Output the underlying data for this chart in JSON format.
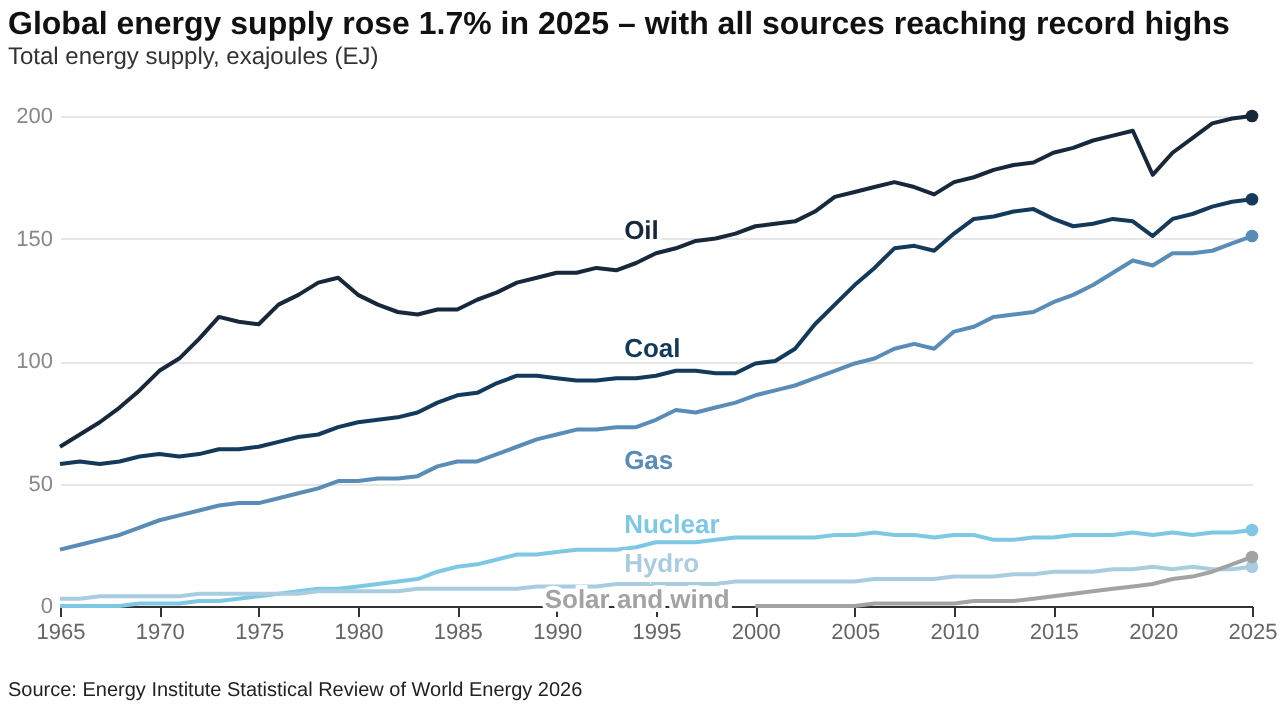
{
  "chart_data": {
    "type": "line",
    "title": "Global energy supply rose 1.7% in 2025 – with all sources reaching record highs",
    "subtitle": "Total energy supply, exajoules (EJ)",
    "x": [
      1965,
      1966,
      1967,
      1968,
      1969,
      1970,
      1971,
      1972,
      1973,
      1974,
      1975,
      1976,
      1977,
      1978,
      1979,
      1980,
      1981,
      1982,
      1983,
      1984,
      1985,
      1986,
      1987,
      1988,
      1989,
      1990,
      1991,
      1992,
      1993,
      1994,
      1995,
      1996,
      1997,
      1998,
      1999,
      2000,
      2001,
      2002,
      2003,
      2004,
      2005,
      2006,
      2007,
      2008,
      2009,
      2010,
      2011,
      2012,
      2013,
      2014,
      2015,
      2016,
      2017,
      2018,
      2019,
      2020,
      2021,
      2022,
      2023,
      2024,
      2025
    ],
    "series": [
      {
        "name": "Oil",
        "color": "#16283a",
        "values": [
          65,
          70,
          75,
          81,
          88,
          96,
          101,
          109,
          118,
          116,
          115,
          123,
          127,
          132,
          134,
          127,
          123,
          120,
          119,
          121,
          121,
          125,
          128,
          132,
          134,
          136,
          136,
          138,
          137,
          140,
          144,
          146,
          149,
          150,
          152,
          155,
          156,
          157,
          161,
          167,
          169,
          171,
          173,
          171,
          168,
          173,
          175,
          178,
          180,
          181,
          185,
          187,
          190,
          192,
          194,
          176,
          185,
          191,
          197,
          199,
          200
        ]
      },
      {
        "name": "Coal",
        "color": "#133a5a",
        "values": [
          58,
          59,
          58,
          59,
          61,
          62,
          61,
          62,
          64,
          64,
          65,
          67,
          69,
          70,
          73,
          75,
          76,
          77,
          79,
          83,
          86,
          87,
          91,
          94,
          94,
          93,
          92,
          92,
          93,
          93,
          94,
          96,
          96,
          95,
          95,
          99,
          100,
          105,
          115,
          123,
          131,
          138,
          146,
          147,
          145,
          152,
          158,
          159,
          161,
          162,
          158,
          155,
          156,
          158,
          157,
          151,
          158,
          160,
          163,
          165,
          166
        ]
      },
      {
        "name": "Gas",
        "color": "#5a8cb8",
        "values": [
          23,
          25,
          27,
          29,
          32,
          35,
          37,
          39,
          41,
          42,
          42,
          44,
          46,
          48,
          51,
          51,
          52,
          52,
          53,
          57,
          59,
          59,
          62,
          65,
          68,
          70,
          72,
          72,
          73,
          73,
          76,
          80,
          79,
          81,
          83,
          86,
          88,
          90,
          93,
          96,
          99,
          101,
          105,
          107,
          105,
          112,
          114,
          118,
          119,
          120,
          124,
          127,
          131,
          136,
          141,
          139,
          144,
          144,
          145,
          148,
          151
        ]
      },
      {
        "name": "Nuclear",
        "color": "#7ec8e3",
        "values": [
          0,
          0,
          0,
          0,
          1,
          1,
          1,
          2,
          2,
          3,
          4,
          5,
          6,
          7,
          7,
          8,
          9,
          10,
          11,
          14,
          16,
          17,
          19,
          21,
          21,
          22,
          23,
          23,
          23,
          24,
          26,
          26,
          26,
          27,
          28,
          28,
          28,
          28,
          28,
          29,
          29,
          30,
          29,
          29,
          28,
          29,
          29,
          27,
          27,
          28,
          28,
          29,
          29,
          29,
          30,
          29,
          30,
          29,
          30,
          30,
          31
        ]
      },
      {
        "name": "Hydro",
        "color": "#a9cde0",
        "values": [
          3,
          3,
          4,
          4,
          4,
          4,
          4,
          5,
          5,
          5,
          5,
          5,
          5,
          6,
          6,
          6,
          6,
          6,
          7,
          7,
          7,
          7,
          7,
          7,
          8,
          8,
          8,
          8,
          9,
          9,
          9,
          9,
          9,
          9,
          10,
          10,
          10,
          10,
          10,
          10,
          10,
          11,
          11,
          11,
          11,
          12,
          12,
          12,
          13,
          13,
          14,
          14,
          14,
          15,
          15,
          16,
          15,
          16,
          15,
          15,
          16
        ]
      },
      {
        "name": "Solar and wind",
        "color": "#a3a3a3",
        "values": [
          null,
          null,
          null,
          null,
          null,
          null,
          null,
          null,
          null,
          null,
          null,
          null,
          null,
          null,
          null,
          null,
          null,
          null,
          null,
          null,
          null,
          null,
          null,
          null,
          null,
          null,
          null,
          null,
          null,
          null,
          null,
          null,
          null,
          null,
          null,
          0,
          0,
          0,
          0,
          0,
          0,
          1,
          1,
          1,
          1,
          1,
          2,
          2,
          2,
          3,
          4,
          5,
          6,
          7,
          8,
          9,
          11,
          12,
          14,
          17,
          20
        ]
      }
    ],
    "xlim": [
      1965,
      2025
    ],
    "xticks": [
      1965,
      1970,
      1975,
      1980,
      1985,
      1990,
      1995,
      2000,
      2005,
      2010,
      2015,
      2020,
      2025
    ],
    "ylim": [
      0,
      200
    ],
    "yticks": [
      0,
      50,
      100,
      150,
      200
    ],
    "grid": "y",
    "legend": false,
    "annotations": [
      "Source: Energy Institute Statistical Review of World Energy 2026"
    ]
  }
}
